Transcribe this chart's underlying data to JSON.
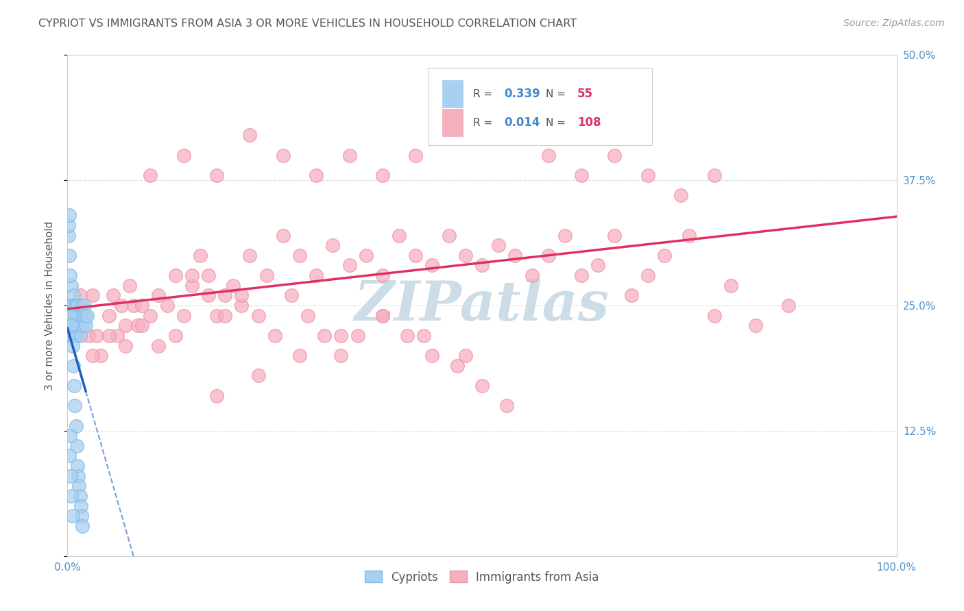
{
  "title": "CYPRIOT VS IMMIGRANTS FROM ASIA 3 OR MORE VEHICLES IN HOUSEHOLD CORRELATION CHART",
  "source": "Source: ZipAtlas.com",
  "ylabel": "3 or more Vehicles in Household",
  "xlim": [
    0.0,
    1.0
  ],
  "ylim": [
    0.0,
    0.5
  ],
  "xticks": [
    0.0,
    0.25,
    0.5,
    0.75,
    1.0
  ],
  "yticks": [
    0.0,
    0.125,
    0.25,
    0.375,
    0.5
  ],
  "xticklabels": [
    "0.0%",
    "",
    "",
    "",
    "100.0%"
  ],
  "yticklabels_right": [
    "",
    "12.5%",
    "25.0%",
    "37.5%",
    "50.0%"
  ],
  "legend_labels": [
    "Cypriots",
    "Immigrants from Asia"
  ],
  "cypriot_R": "0.339",
  "cypriot_N": "55",
  "asia_R": "0.014",
  "asia_N": "108",
  "cypriot_color": "#a8d0f0",
  "cypriot_edge_color": "#80b8e8",
  "cypriot_line_color": "#1a5fbf",
  "asia_color": "#f5b0c0",
  "asia_edge_color": "#f090a8",
  "asia_line_color": "#e03060",
  "watermark_color": "#ccdde8",
  "background_color": "#ffffff",
  "grid_color": "#dddddd",
  "title_color": "#555555",
  "axis_label_color": "#555555",
  "tick_color": "#5090c8",
  "R_color": "#4488cc",
  "N_color": "#dd3366",
  "legend_box_color": "#cccccc",
  "cypriot_x": [
    0.002,
    0.003,
    0.003,
    0.004,
    0.005,
    0.005,
    0.006,
    0.006,
    0.007,
    0.007,
    0.008,
    0.008,
    0.009,
    0.009,
    0.01,
    0.01,
    0.011,
    0.012,
    0.012,
    0.013,
    0.014,
    0.015,
    0.016,
    0.017,
    0.018,
    0.019,
    0.02,
    0.021,
    0.022,
    0.024,
    0.001,
    0.001,
    0.002,
    0.002,
    0.003,
    0.004,
    0.005,
    0.006,
    0.007,
    0.008,
    0.009,
    0.01,
    0.011,
    0.012,
    0.013,
    0.014,
    0.015,
    0.016,
    0.017,
    0.018,
    0.002,
    0.003,
    0.004,
    0.005,
    0.006
  ],
  "cypriot_y": [
    0.25,
    0.24,
    0.22,
    0.23,
    0.25,
    0.27,
    0.24,
    0.22,
    0.26,
    0.24,
    0.23,
    0.25,
    0.24,
    0.22,
    0.23,
    0.25,
    0.24,
    0.23,
    0.25,
    0.24,
    0.23,
    0.22,
    0.24,
    0.25,
    0.23,
    0.24,
    0.25,
    0.24,
    0.23,
    0.24,
    0.32,
    0.33,
    0.34,
    0.3,
    0.28,
    0.24,
    0.23,
    0.21,
    0.19,
    0.17,
    0.15,
    0.13,
    0.11,
    0.09,
    0.08,
    0.07,
    0.06,
    0.05,
    0.04,
    0.03,
    0.1,
    0.12,
    0.08,
    0.06,
    0.04
  ],
  "asia_x": [
    0.005,
    0.01,
    0.015,
    0.02,
    0.025,
    0.03,
    0.035,
    0.04,
    0.05,
    0.055,
    0.06,
    0.065,
    0.07,
    0.075,
    0.08,
    0.085,
    0.09,
    0.1,
    0.11,
    0.12,
    0.13,
    0.14,
    0.15,
    0.16,
    0.17,
    0.18,
    0.19,
    0.2,
    0.21,
    0.22,
    0.24,
    0.26,
    0.28,
    0.3,
    0.32,
    0.34,
    0.36,
    0.38,
    0.4,
    0.42,
    0.44,
    0.46,
    0.48,
    0.5,
    0.52,
    0.54,
    0.56,
    0.58,
    0.6,
    0.62,
    0.64,
    0.66,
    0.68,
    0.7,
    0.72,
    0.75,
    0.78,
    0.8,
    0.83,
    0.87,
    0.03,
    0.05,
    0.07,
    0.09,
    0.11,
    0.13,
    0.15,
    0.17,
    0.19,
    0.21,
    0.23,
    0.25,
    0.27,
    0.29,
    0.31,
    0.33,
    0.35,
    0.38,
    0.41,
    0.44,
    0.47,
    0.5,
    0.53,
    0.48,
    0.43,
    0.38,
    0.33,
    0.28,
    0.23,
    0.18,
    0.1,
    0.14,
    0.18,
    0.22,
    0.26,
    0.3,
    0.34,
    0.38,
    0.42,
    0.46,
    0.5,
    0.54,
    0.58,
    0.62,
    0.66,
    0.7,
    0.74,
    0.78
  ],
  "asia_y": [
    0.24,
    0.22,
    0.26,
    0.24,
    0.22,
    0.26,
    0.22,
    0.2,
    0.24,
    0.26,
    0.22,
    0.25,
    0.23,
    0.27,
    0.25,
    0.23,
    0.25,
    0.24,
    0.26,
    0.25,
    0.28,
    0.24,
    0.27,
    0.3,
    0.28,
    0.24,
    0.26,
    0.27,
    0.25,
    0.3,
    0.28,
    0.32,
    0.3,
    0.28,
    0.31,
    0.29,
    0.3,
    0.28,
    0.32,
    0.3,
    0.29,
    0.32,
    0.3,
    0.29,
    0.31,
    0.3,
    0.28,
    0.3,
    0.32,
    0.28,
    0.29,
    0.32,
    0.26,
    0.28,
    0.3,
    0.32,
    0.24,
    0.27,
    0.23,
    0.25,
    0.2,
    0.22,
    0.21,
    0.23,
    0.21,
    0.22,
    0.28,
    0.26,
    0.24,
    0.26,
    0.24,
    0.22,
    0.26,
    0.24,
    0.22,
    0.2,
    0.22,
    0.24,
    0.22,
    0.2,
    0.19,
    0.17,
    0.15,
    0.2,
    0.22,
    0.24,
    0.22,
    0.2,
    0.18,
    0.16,
    0.38,
    0.4,
    0.38,
    0.42,
    0.4,
    0.38,
    0.4,
    0.38,
    0.4,
    0.42,
    0.44,
    0.42,
    0.4,
    0.38,
    0.4,
    0.38,
    0.36,
    0.38
  ]
}
